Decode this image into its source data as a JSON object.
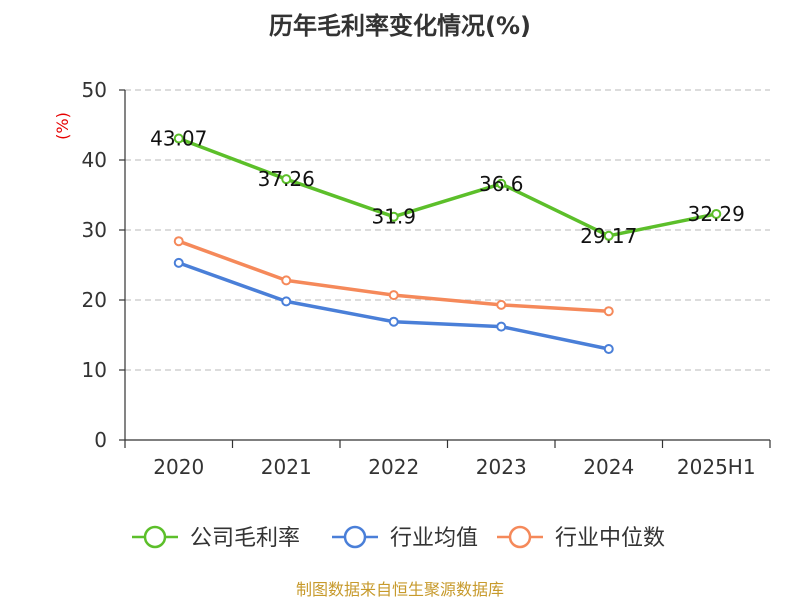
{
  "chart_data": {
    "type": "line",
    "title": "历年毛利率变化情况(%)",
    "ylabel": "(%)",
    "xlabel": "",
    "categories": [
      "2020",
      "2021",
      "2022",
      "2023",
      "2024",
      "2025H1"
    ],
    "ylim": [
      0,
      50
    ],
    "yticks": [
      0,
      10,
      20,
      30,
      40,
      50
    ],
    "grid": true,
    "legend_position": "bottom",
    "series": [
      {
        "name": "公司毛利率",
        "color": "#5cbf2a",
        "values": [
          43.07,
          37.26,
          31.9,
          36.6,
          29.17,
          32.29
        ],
        "data_labels": [
          "43.07",
          "37.26",
          "31.9",
          "36.6",
          "29.17",
          "32.29"
        ]
      },
      {
        "name": "行业均值",
        "color": "#4a7fd8",
        "values": [
          25.3,
          19.8,
          16.9,
          16.2,
          13.0,
          null
        ]
      },
      {
        "name": "行业中位数",
        "color": "#f5895a",
        "values": [
          28.4,
          22.8,
          20.7,
          19.3,
          18.4,
          null
        ]
      }
    ],
    "source": "制图数据来自恒生聚源数据库"
  }
}
